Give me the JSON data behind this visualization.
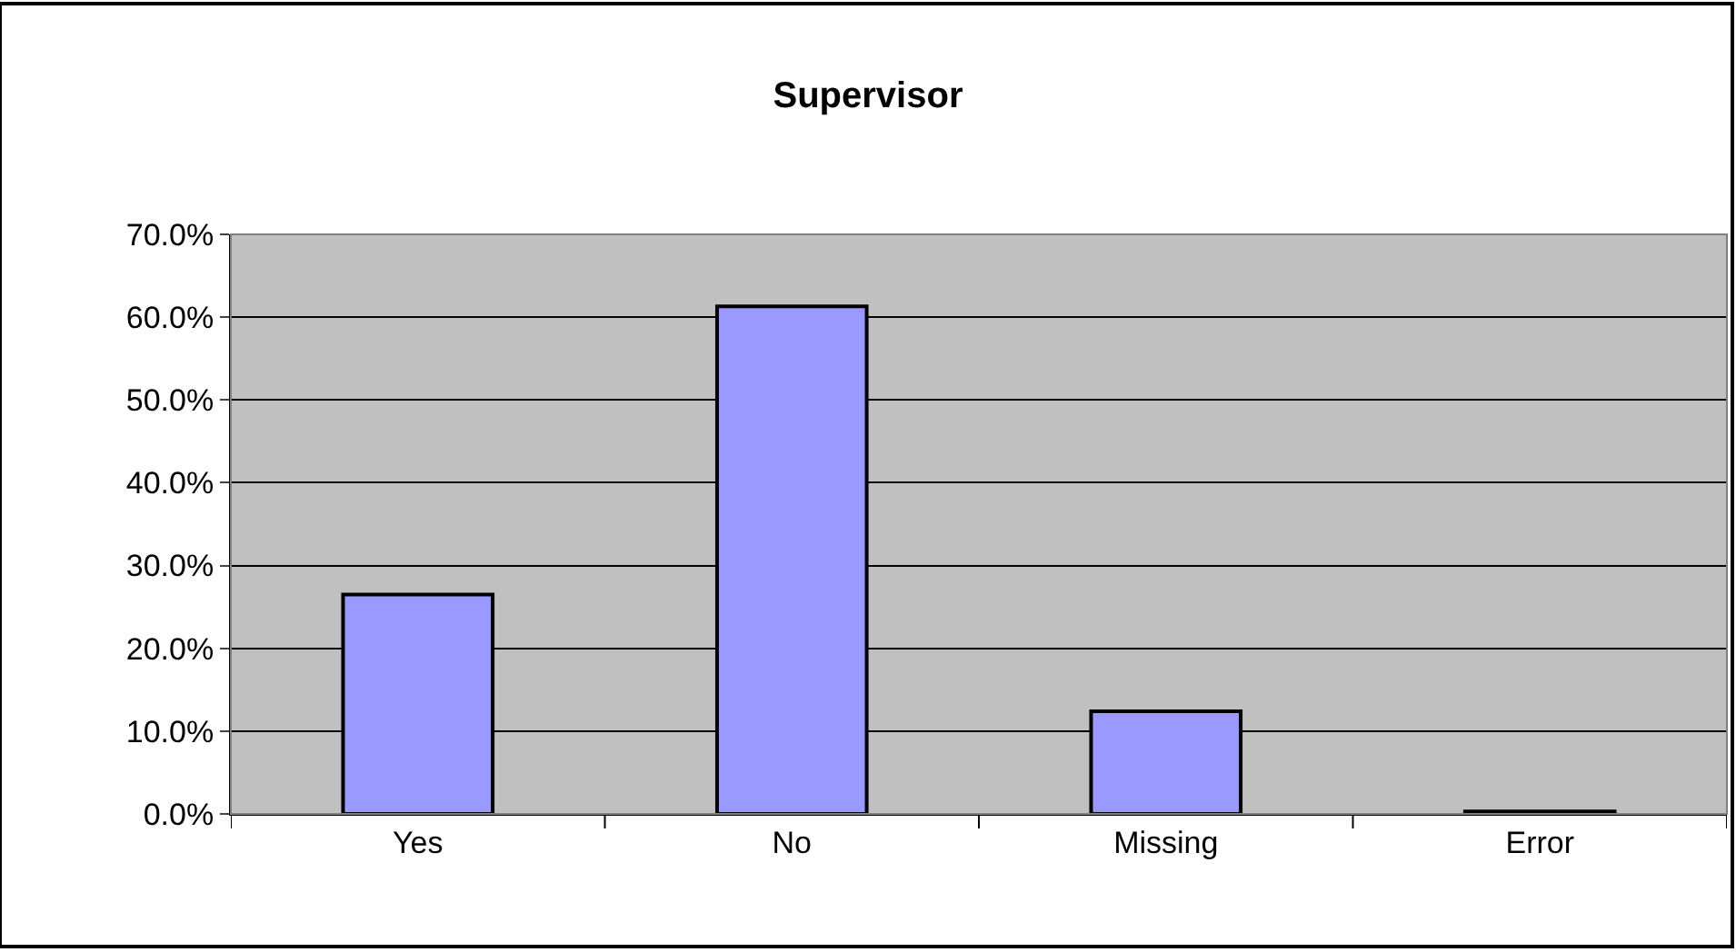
{
  "chart_data": {
    "type": "bar",
    "title": "Supervisor",
    "categories": [
      "Yes",
      "No",
      "Missing",
      "Error"
    ],
    "values": [
      26.5,
      61.3,
      12.4,
      0.3
    ],
    "color": "#9999ff",
    "ylim": [
      0,
      70
    ],
    "yticks": [
      {
        "value": 0,
        "label": "0.0%"
      },
      {
        "value": 10,
        "label": "10.0%"
      },
      {
        "value": 20,
        "label": "20.0%"
      },
      {
        "value": 30,
        "label": "30.0%"
      },
      {
        "value": 40,
        "label": "40.0%"
      },
      {
        "value": 50,
        "label": "50.0%"
      },
      {
        "value": 60,
        "label": "60.0%"
      },
      {
        "value": 70,
        "label": "70.0%"
      }
    ],
    "grid": "y"
  }
}
